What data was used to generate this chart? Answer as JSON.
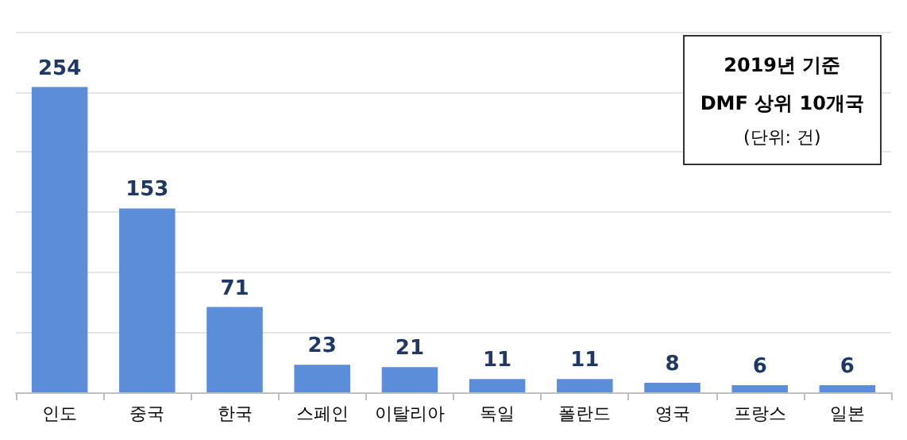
{
  "chart_data": {
    "type": "bar",
    "title": "2019년 기준\nDMF 상위 10개국",
    "subtitle": "(단위: 건)",
    "categories": [
      "인도",
      "중국",
      "한국",
      "스페인",
      "이탈리아",
      "독일",
      "폴란드",
      "영국",
      "프랑스",
      "일본"
    ],
    "values": [
      254,
      153,
      71,
      23,
      21,
      11,
      11,
      8,
      6,
      6
    ],
    "color": "#5b8dd9",
    "ylim": [
      0,
      300
    ],
    "yticks": [
      {
        "value": 0,
        "label": null
      },
      {
        "value": 50,
        "label": null
      },
      {
        "value": 100,
        "label": null
      },
      {
        "value": 150,
        "label": null
      },
      {
        "value": 200,
        "label": null
      },
      {
        "value": 250,
        "label": null
      },
      {
        "value": 300,
        "label": null
      }
    ],
    "grid": "y",
    "tick_labels": "x",
    "data_labels": true
  }
}
